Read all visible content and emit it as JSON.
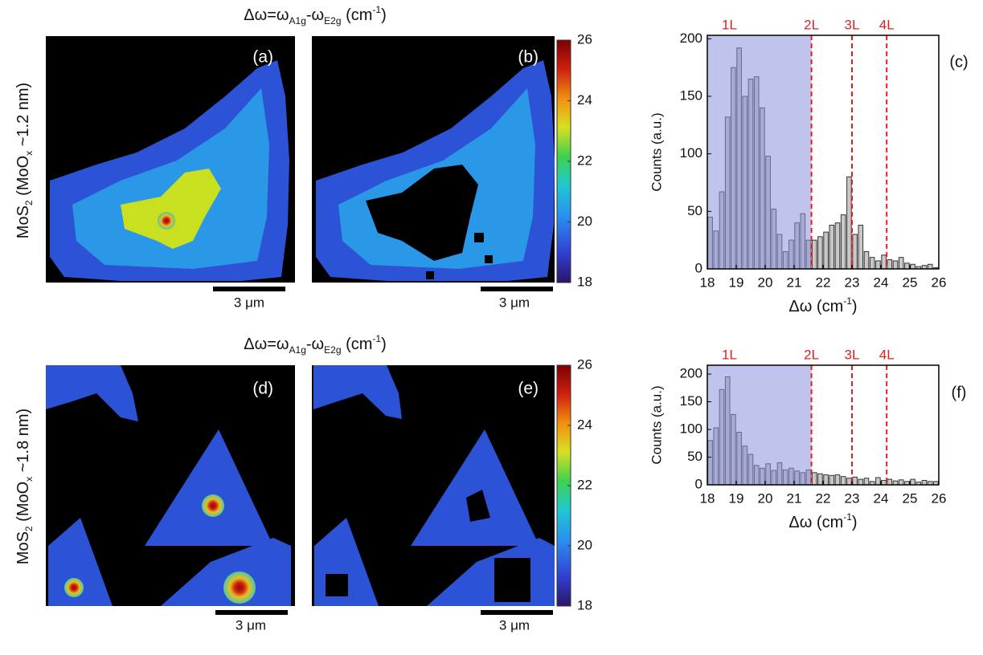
{
  "figure": {
    "rows": [
      {
        "title_parts": [
          "Δω=ω",
          "A1g",
          "-ω",
          "E2g",
          " (cm",
          "-1",
          ")"
        ],
        "ylabel_parts": [
          "MoS",
          "2",
          " (MoO",
          "x",
          " ~1.2 nm)"
        ],
        "panels": [
          "(a)",
          "(b)"
        ],
        "scale_bars": [
          "3 μm",
          "3 μm"
        ],
        "colorbar": {
          "lim": [
            18,
            26
          ],
          "ticks": [
            18,
            20,
            22,
            24,
            26
          ]
        }
      },
      {
        "title_parts": [
          "Δω=ω",
          "A1g",
          "-ω",
          "E2g",
          " (cm",
          "-1",
          ")"
        ],
        "ylabel_parts": [
          "MoS",
          "2",
          " (MoO",
          "x",
          " ~1.8 nm)"
        ],
        "panels": [
          "(d)",
          "(e)"
        ],
        "scale_bars": [
          "3 μm",
          "3 μm"
        ],
        "colorbar": {
          "lim": [
            18,
            26
          ],
          "ticks": [
            18,
            20,
            22,
            24,
            26
          ]
        }
      }
    ]
  },
  "chart_data": [
    {
      "type": "histogram",
      "panel_label": "(c)",
      "xlabel_parts": [
        "Δω (cm",
        "-1",
        ")"
      ],
      "ylabel": "Counts (a.u.)",
      "bins": [
        18,
        18.2,
        18.4,
        18.6,
        18.8,
        19,
        19.2,
        19.4,
        19.6,
        19.8,
        20,
        20.2,
        20.4,
        20.6,
        20.8,
        21,
        21.2,
        21.4,
        21.6,
        21.8,
        22,
        22.2,
        22.4,
        22.6,
        22.8,
        23,
        23.2,
        23.4,
        23.6,
        23.8,
        24,
        24.2,
        24.4,
        24.6,
        24.8,
        25,
        25.2,
        25.4,
        25.6,
        25.8,
        26
      ],
      "values": [
        45,
        33,
        67,
        132,
        175,
        192,
        150,
        165,
        167,
        140,
        98,
        52,
        30,
        15,
        25,
        40,
        48,
        25,
        25,
        28,
        32,
        38,
        40,
        47,
        80,
        30,
        38,
        15,
        10,
        7,
        12,
        8,
        7,
        10,
        5,
        4,
        2,
        3,
        4,
        1
      ],
      "color": "#c8c8c8",
      "shaded_region": {
        "label": "1L",
        "xlim": [
          18,
          21.6
        ],
        "color": "#8c93dc"
      },
      "lines": [
        {
          "label": "2L",
          "x": 21.6
        },
        {
          "label": "3L",
          "x": 23
        },
        {
          "label": "4L",
          "x": 24.2
        }
      ],
      "line_color": "#e02020",
      "xlim": [
        18,
        26
      ],
      "xticks": [
        18,
        19,
        20,
        21,
        22,
        23,
        24,
        25,
        26
      ],
      "ylim": [
        0,
        203
      ],
      "yticks": [
        0,
        50,
        100,
        150,
        200
      ]
    },
    {
      "type": "histogram",
      "panel_label": "(f)",
      "xlabel_parts": [
        "Δω (cm",
        "-1",
        ")"
      ],
      "ylabel": "Counts (a.u.)",
      "bins": [
        18,
        18.2,
        18.4,
        18.6,
        18.8,
        19,
        19.2,
        19.4,
        19.6,
        19.8,
        20,
        20.2,
        20.4,
        20.6,
        20.8,
        21,
        21.2,
        21.4,
        21.6,
        21.8,
        22,
        22.2,
        22.4,
        22.6,
        22.8,
        23,
        23.2,
        23.4,
        23.6,
        23.8,
        24,
        24.2,
        24.4,
        24.6,
        24.8,
        25,
        25.2,
        25.4,
        25.6,
        25.8,
        26
      ],
      "values": [
        80,
        103,
        172,
        195,
        127,
        95,
        70,
        55,
        35,
        30,
        38,
        26,
        40,
        27,
        30,
        25,
        22,
        27,
        22,
        20,
        18,
        17,
        18,
        15,
        12,
        14,
        10,
        12,
        6,
        13,
        8,
        10,
        7,
        9,
        6,
        10,
        5,
        8,
        6,
        6
      ],
      "color": "#c8c8c8",
      "shaded_region": {
        "label": "1L",
        "xlim": [
          18,
          21.6
        ],
        "color": "#8c93dc"
      },
      "lines": [
        {
          "label": "2L",
          "x": 21.6
        },
        {
          "label": "3L",
          "x": 23
        },
        {
          "label": "4L",
          "x": 24.2
        }
      ],
      "line_color": "#e02020",
      "xlim": [
        18,
        26
      ],
      "xticks": [
        18,
        19,
        20,
        21,
        22,
        23,
        24,
        25,
        26
      ],
      "ylim": [
        0,
        216
      ],
      "yticks": [
        0,
        50,
        100,
        150,
        200
      ]
    }
  ]
}
